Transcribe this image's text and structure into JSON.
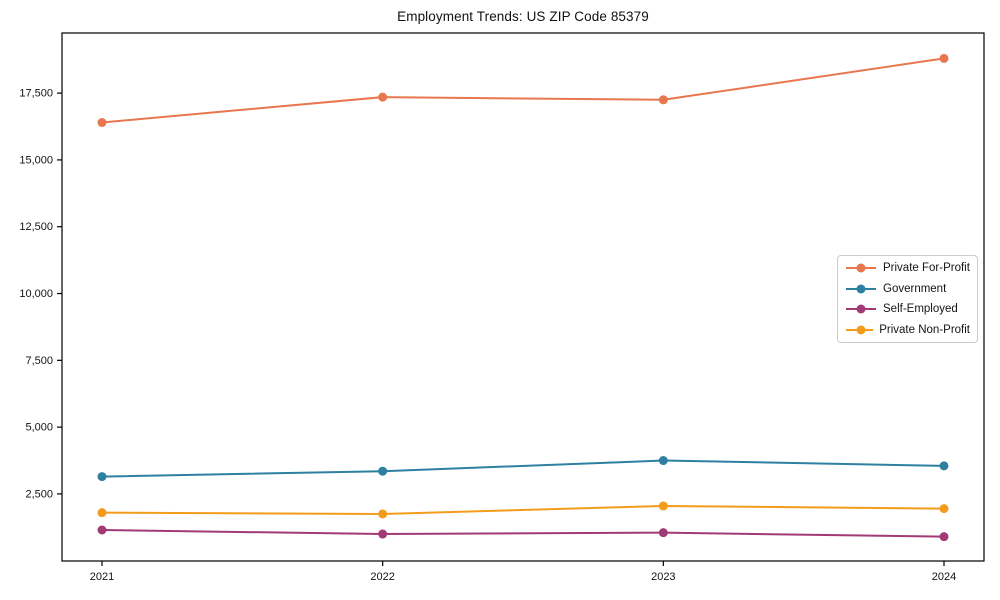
{
  "chart_data": {
    "type": "line",
    "title": "Employment Trends: US ZIP Code 85379",
    "categories": [
      "2021",
      "2022",
      "2023",
      "2024"
    ],
    "series": [
      {
        "name": "Private For-Profit",
        "color": "#e8764e",
        "values": [
          16400,
          17350,
          17250,
          18800
        ]
      },
      {
        "name": "Government",
        "color": "#2e80a0",
        "values": [
          3150,
          3350,
          3750,
          3550
        ]
      },
      {
        "name": "Self-Employed",
        "color": "#a23a76",
        "values": [
          1150,
          1000,
          1050,
          900
        ]
      },
      {
        "name": "Private Non-Profit",
        "color": "#f39c1b",
        "values": [
          1800,
          1750,
          2050,
          1950
        ]
      }
    ],
    "xlabel": "",
    "ylabel": "",
    "yticks": [
      2500,
      5000,
      7500,
      10000,
      12500,
      15000,
      17500
    ],
    "ytick_labels": [
      "2,500",
      "5,000",
      "7,500",
      "10,000",
      "12,500",
      "15,000",
      "17,500"
    ],
    "ylim": [
      -10,
      19750
    ],
    "grid": false,
    "legend_position": "center-right",
    "marker": "circle",
    "axis_color": "#000000",
    "background": "#ffffff"
  }
}
